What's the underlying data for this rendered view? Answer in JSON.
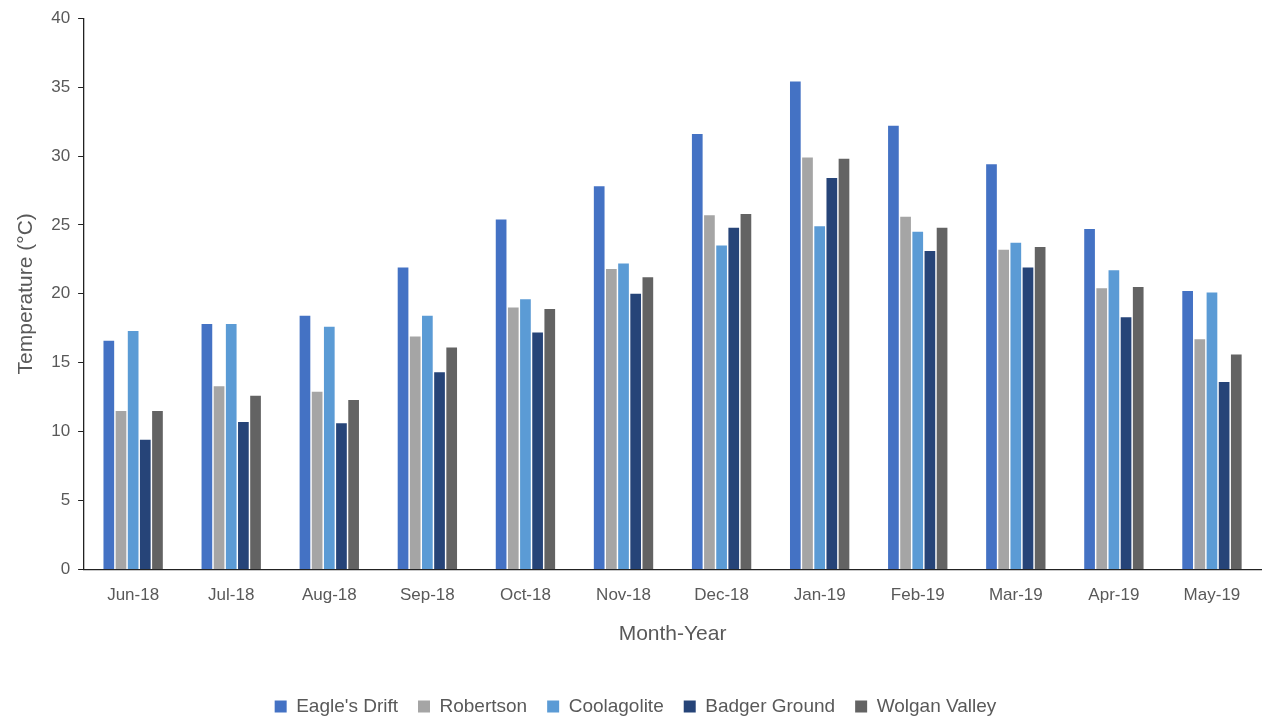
{
  "chart_data": {
    "type": "bar",
    "xlabel": "Month-Year",
    "ylabel": "Temperature (°C)",
    "categories": [
      "Jun-18",
      "Jul-18",
      "Aug-18",
      "Sep-18",
      "Oct-18",
      "Nov-18",
      "Dec-18",
      "Jan-19",
      "Feb-19",
      "Mar-19",
      "Apr-19",
      "May-19"
    ],
    "series": [
      {
        "name": "Eagle's Drift",
        "color": "#4472c4",
        "values": [
          16.6,
          17.8,
          18.4,
          21.9,
          25.4,
          27.8,
          31.6,
          35.4,
          32.2,
          29.4,
          24.7,
          20.2
        ]
      },
      {
        "name": "Robertson",
        "color": "#a5a5a5",
        "values": [
          11.5,
          13.3,
          12.9,
          16.9,
          19.0,
          21.8,
          25.7,
          29.9,
          25.6,
          23.2,
          20.4,
          16.7
        ]
      },
      {
        "name": "Coolagolite",
        "color": "#5b9bd5",
        "values": [
          17.3,
          17.8,
          17.6,
          18.4,
          19.6,
          22.2,
          23.5,
          24.9,
          24.5,
          23.7,
          21.7,
          20.1
        ]
      },
      {
        "name": "Badger Ground",
        "color": "#264478",
        "values": [
          9.4,
          10.7,
          10.6,
          14.3,
          17.2,
          20.0,
          24.8,
          28.4,
          23.1,
          21.9,
          18.3,
          13.6
        ]
      },
      {
        "name": "Wolgan Valley",
        "color": "#636363",
        "values": [
          11.5,
          12.6,
          12.3,
          16.1,
          18.9,
          21.2,
          25.8,
          29.8,
          24.8,
          23.4,
          20.5,
          15.6
        ]
      }
    ],
    "ylim": [
      0,
      40
    ],
    "yticks": [
      0,
      5,
      10,
      15,
      20,
      25,
      30,
      35,
      40
    ],
    "grid": false,
    "legend": "bottom"
  }
}
